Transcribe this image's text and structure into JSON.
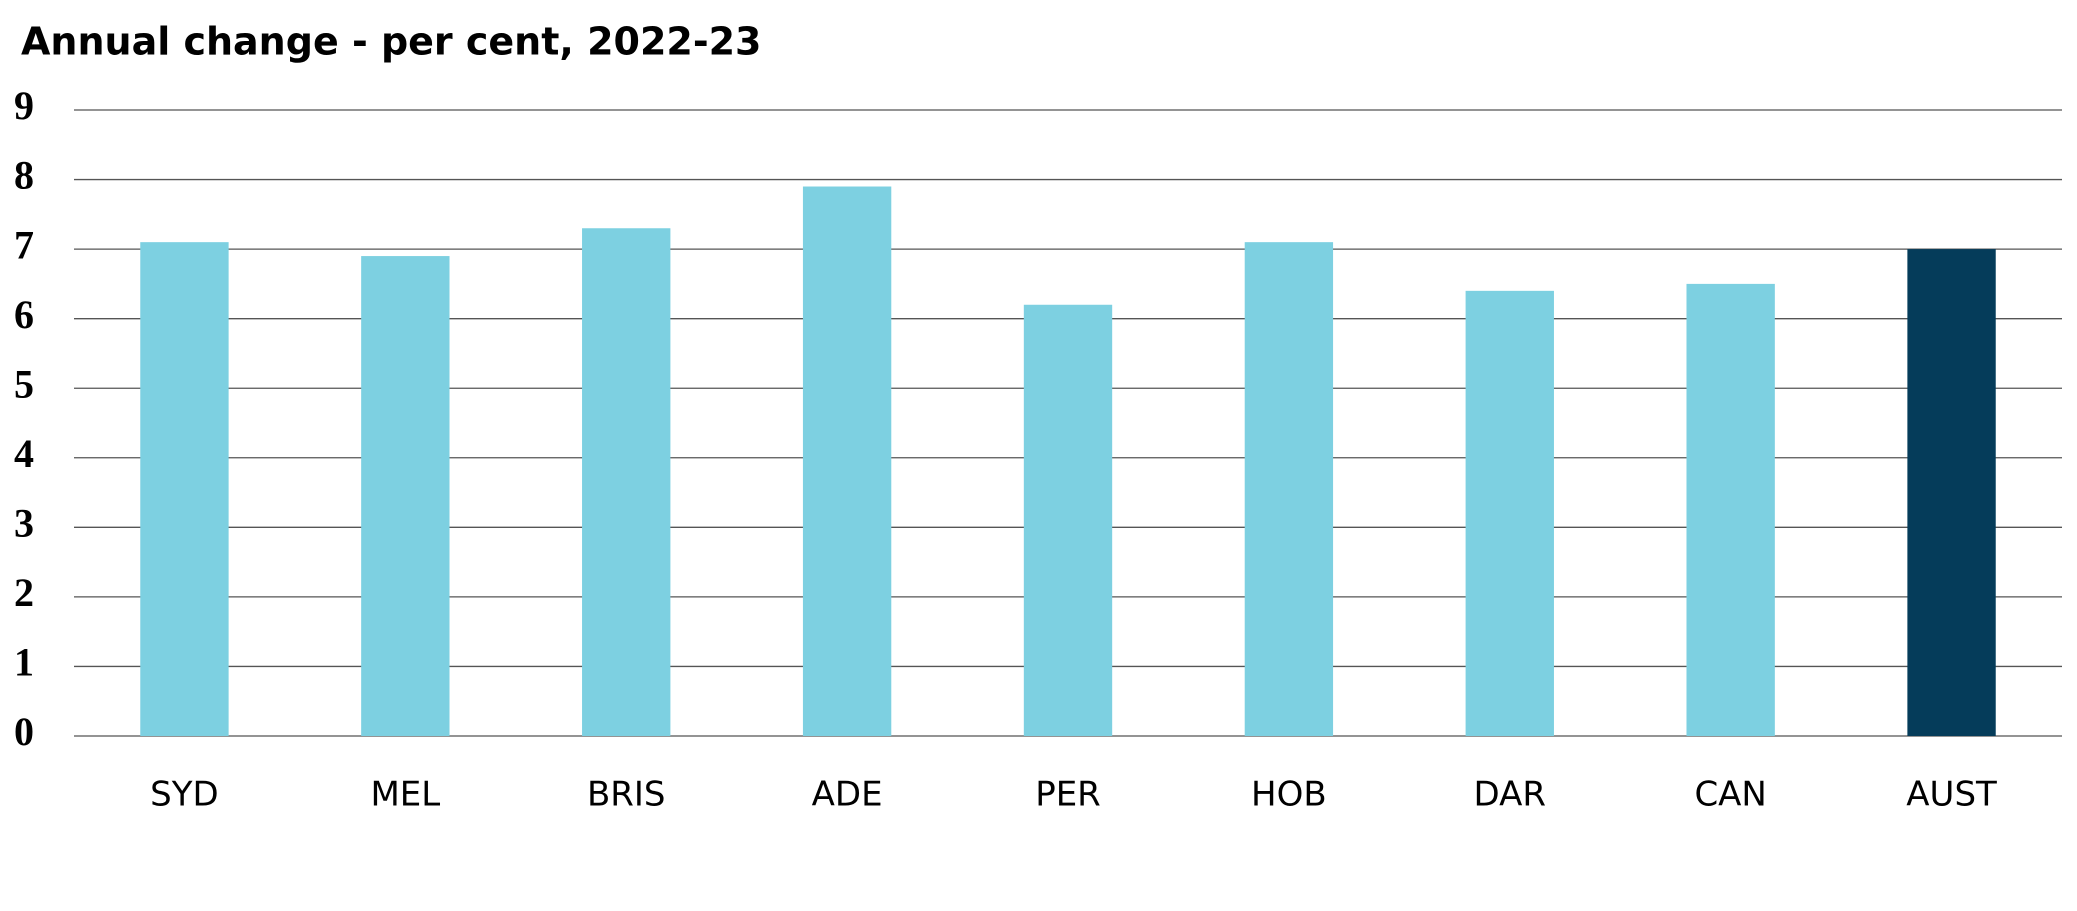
{
  "chart_data": {
    "type": "bar",
    "title": "Annual change - per cent, 2022-23",
    "categories": [
      "SYD",
      "MEL",
      "BRIS",
      "ADE",
      "PER",
      "HOB",
      "DAR",
      "CAN",
      "AUST"
    ],
    "values": [
      7.1,
      6.9,
      7.3,
      7.9,
      6.2,
      7.1,
      6.4,
      6.5,
      7.0
    ],
    "colors": [
      "#7dd0e1",
      "#7dd0e1",
      "#7dd0e1",
      "#7dd0e1",
      "#7dd0e1",
      "#7dd0e1",
      "#7dd0e1",
      "#7dd0e1",
      "#053c5a"
    ],
    "ylim": [
      0,
      9
    ],
    "yticks": [
      0,
      1,
      2,
      3,
      4,
      5,
      6,
      7,
      8,
      9
    ],
    "grid": true
  }
}
